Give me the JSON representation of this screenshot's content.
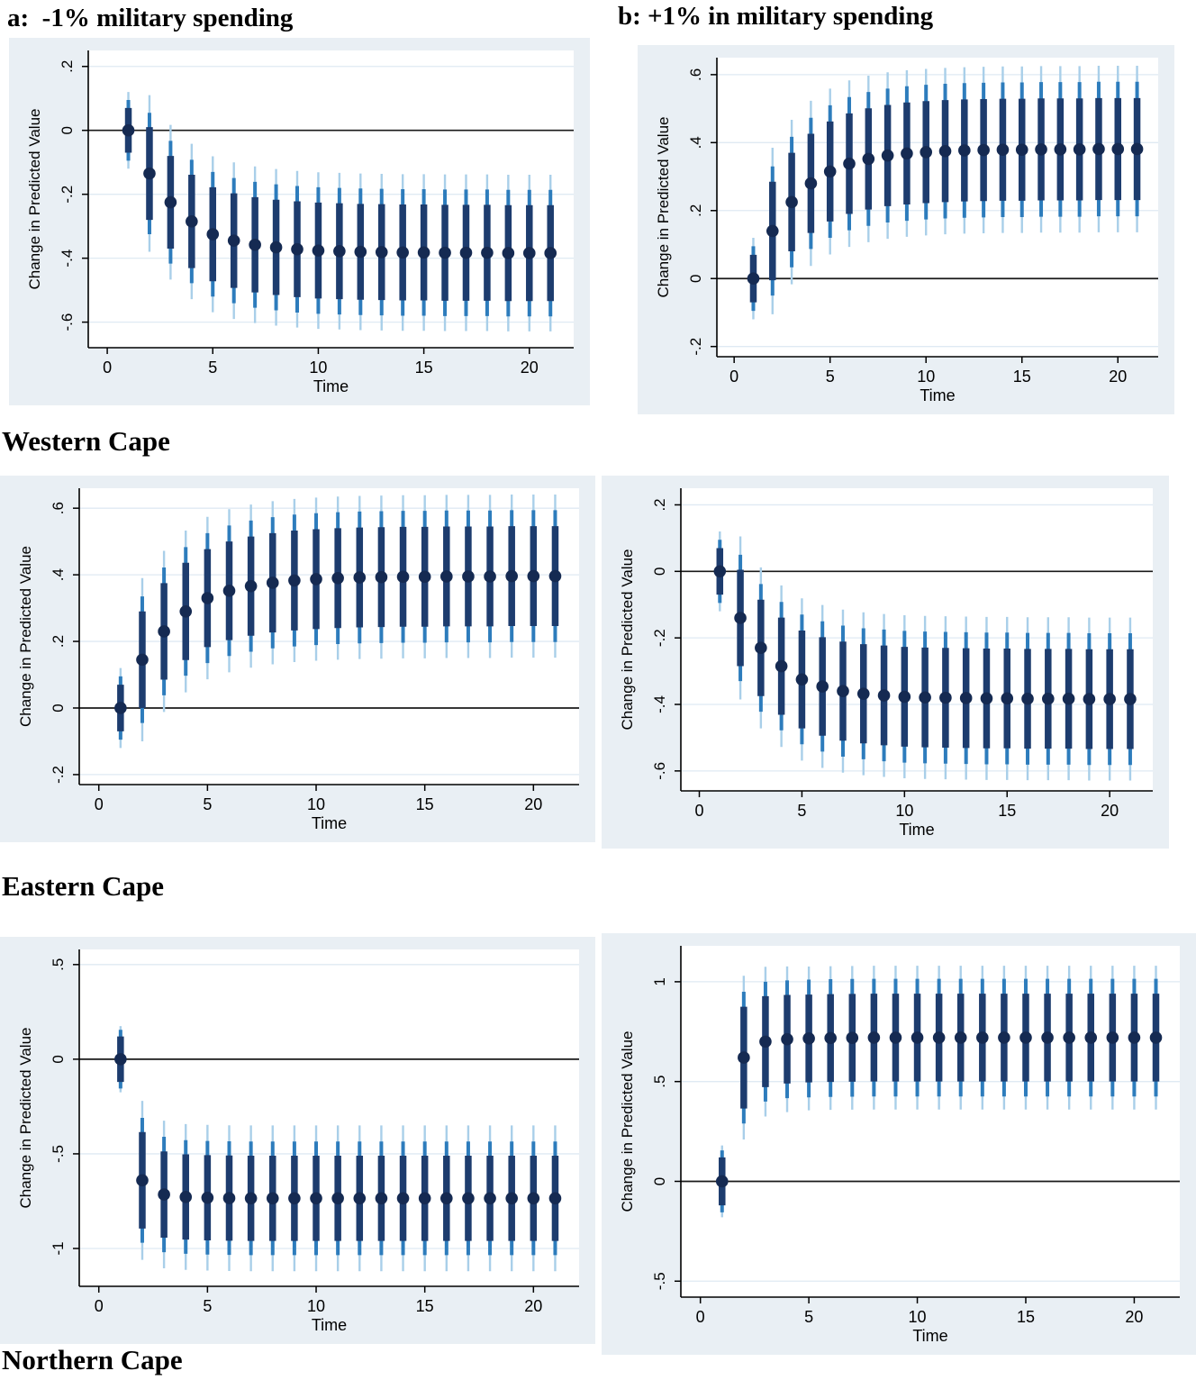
{
  "colors": {
    "panel_bg": "#e9eff4",
    "plot_bg": "#ffffff",
    "grid": "#dfeaf3",
    "inner_ci": "#1d3c6e",
    "mid_ci": "#2d7cbc",
    "outer_ci": "#a9cfe9",
    "marker": "#152a52",
    "zero_line": "#1a1a1a",
    "axis": "#000000"
  },
  "column_titles": [
    {
      "label": "a:  -1% military spending"
    },
    {
      "label": "b: +1% in military spending"
    }
  ],
  "row_labels": [
    "Western Cape",
    "Eastern Cape",
    "Northern Cape"
  ],
  "x_values": [
    1,
    2,
    3,
    4,
    5,
    6,
    7,
    8,
    9,
    10,
    11,
    12,
    13,
    14,
    15,
    16,
    17,
    18,
    19,
    20,
    21
  ],
  "chart_data": [
    {
      "id": "wc-a",
      "type": "scatter",
      "row_label": "Western Cape",
      "column": "a:  -1% military spending",
      "xlabel": "Time",
      "ylabel": "Change in Predicted Value",
      "xticks": [
        0,
        5,
        10,
        15,
        20
      ],
      "xlim": [
        -0.9,
        22.1
      ],
      "ytick_values": [
        0.2,
        0,
        -0.2,
        -0.4,
        -0.6
      ],
      "ytick_labels": [
        ".2",
        "0",
        "-.2",
        "-.4",
        "-.6"
      ],
      "ylim": [
        -0.68,
        0.25
      ],
      "y": [
        0,
        -0.135,
        -0.225,
        -0.285,
        -0.325,
        -0.345,
        -0.358,
        -0.366,
        -0.372,
        -0.376,
        -0.378,
        -0.38,
        -0.381,
        -0.382,
        -0.382,
        -0.383,
        -0.383,
        -0.383,
        -0.384,
        -0.384,
        -0.384
      ],
      "ci_inner_half": [
        0.07,
        0.145,
        0.145,
        0.146,
        0.147,
        0.148,
        0.149,
        0.149,
        0.15,
        0.15,
        0.15,
        0.15,
        0.15,
        0.15,
        0.15,
        0.15,
        0.15,
        0.15,
        0.15,
        0.15,
        0.15
      ],
      "ci_mid_half": [
        0.095,
        0.19,
        0.192,
        0.193,
        0.195,
        0.196,
        0.197,
        0.197,
        0.198,
        0.198,
        0.198,
        0.198,
        0.198,
        0.198,
        0.198,
        0.198,
        0.198,
        0.198,
        0.198,
        0.198,
        0.198
      ],
      "ci_outer_half": [
        0.12,
        0.245,
        0.242,
        0.243,
        0.244,
        0.245,
        0.245,
        0.245,
        0.245,
        0.245,
        0.245,
        0.245,
        0.245,
        0.245,
        0.245,
        0.245,
        0.245,
        0.245,
        0.245,
        0.245,
        0.245
      ]
    },
    {
      "id": "wc-b",
      "type": "scatter",
      "row_label": "Western Cape",
      "column": "b: +1% in military spending",
      "xlabel": "Time",
      "ylabel": "Change in Predicted Value",
      "xticks": [
        0,
        5,
        10,
        15,
        20
      ],
      "xlim": [
        -0.9,
        22.1
      ],
      "ytick_values": [
        0.6,
        0.4,
        0.2,
        0,
        -0.2
      ],
      "ytick_labels": [
        ".6",
        ".4",
        ".2",
        "0",
        "-.2"
      ],
      "ylim": [
        -0.23,
        0.65
      ],
      "y": [
        0,
        0.14,
        0.225,
        0.28,
        0.315,
        0.338,
        0.352,
        0.362,
        0.368,
        0.372,
        0.375,
        0.377,
        0.378,
        0.379,
        0.379,
        0.38,
        0.38,
        0.38,
        0.381,
        0.381,
        0.381
      ],
      "ci_inner_half": [
        0.07,
        0.145,
        0.145,
        0.146,
        0.147,
        0.148,
        0.149,
        0.149,
        0.15,
        0.15,
        0.15,
        0.15,
        0.15,
        0.15,
        0.15,
        0.15,
        0.15,
        0.15,
        0.15,
        0.15,
        0.15
      ],
      "ci_mid_half": [
        0.095,
        0.19,
        0.192,
        0.193,
        0.195,
        0.196,
        0.197,
        0.197,
        0.198,
        0.198,
        0.198,
        0.198,
        0.198,
        0.198,
        0.198,
        0.198,
        0.198,
        0.198,
        0.198,
        0.198,
        0.198
      ],
      "ci_outer_half": [
        0.12,
        0.245,
        0.242,
        0.243,
        0.244,
        0.245,
        0.245,
        0.245,
        0.245,
        0.245,
        0.245,
        0.245,
        0.245,
        0.245,
        0.245,
        0.245,
        0.245,
        0.245,
        0.245,
        0.245,
        0.245
      ]
    },
    {
      "id": "ec-a",
      "type": "scatter",
      "row_label": "Eastern Cape",
      "column": "a:  -1% military spending",
      "xlabel": "Time",
      "ylabel": "Change in Predicted Value",
      "xticks": [
        0,
        5,
        10,
        15,
        20
      ],
      "xlim": [
        -0.9,
        22.1
      ],
      "ytick_values": [
        0.6,
        0.4,
        0.2,
        0,
        -0.2
      ],
      "ytick_labels": [
        ".6",
        ".4",
        ".2",
        "0",
        "-.2"
      ],
      "ylim": [
        -0.23,
        0.66
      ],
      "y": [
        0,
        0.145,
        0.23,
        0.29,
        0.33,
        0.352,
        0.366,
        0.376,
        0.383,
        0.387,
        0.39,
        0.392,
        0.393,
        0.394,
        0.394,
        0.395,
        0.395,
        0.395,
        0.396,
        0.396,
        0.396
      ],
      "ci_inner_half": [
        0.07,
        0.145,
        0.145,
        0.146,
        0.147,
        0.148,
        0.149,
        0.149,
        0.15,
        0.15,
        0.15,
        0.15,
        0.15,
        0.15,
        0.15,
        0.15,
        0.15,
        0.15,
        0.15,
        0.15,
        0.15
      ],
      "ci_mid_half": [
        0.095,
        0.19,
        0.192,
        0.193,
        0.195,
        0.196,
        0.197,
        0.197,
        0.198,
        0.198,
        0.198,
        0.198,
        0.198,
        0.198,
        0.198,
        0.198,
        0.198,
        0.198,
        0.198,
        0.198,
        0.198
      ],
      "ci_outer_half": [
        0.12,
        0.245,
        0.242,
        0.243,
        0.244,
        0.245,
        0.245,
        0.245,
        0.245,
        0.245,
        0.245,
        0.245,
        0.245,
        0.245,
        0.245,
        0.245,
        0.245,
        0.245,
        0.245,
        0.245,
        0.245
      ]
    },
    {
      "id": "ec-b",
      "type": "scatter",
      "row_label": "Eastern Cape",
      "column": "b: +1% in military spending",
      "xlabel": "Time",
      "ylabel": "Change in Predicted Value",
      "xticks": [
        0,
        5,
        10,
        15,
        20
      ],
      "xlim": [
        -0.9,
        22.1
      ],
      "ytick_values": [
        0.2,
        0,
        -0.2,
        -0.4,
        -0.6
      ],
      "ytick_labels": [
        ".2",
        "0",
        "-.2",
        "-.4",
        "-.6"
      ],
      "ylim": [
        -0.66,
        0.25
      ],
      "y": [
        0,
        -0.14,
        -0.23,
        -0.285,
        -0.325,
        -0.346,
        -0.36,
        -0.368,
        -0.373,
        -0.377,
        -0.379,
        -0.38,
        -0.381,
        -0.382,
        -0.382,
        -0.383,
        -0.383,
        -0.383,
        -0.384,
        -0.384,
        -0.384
      ],
      "ci_inner_half": [
        0.07,
        0.145,
        0.145,
        0.146,
        0.147,
        0.148,
        0.149,
        0.149,
        0.15,
        0.15,
        0.15,
        0.15,
        0.15,
        0.15,
        0.15,
        0.15,
        0.15,
        0.15,
        0.15,
        0.15,
        0.15
      ],
      "ci_mid_half": [
        0.095,
        0.19,
        0.192,
        0.193,
        0.195,
        0.196,
        0.197,
        0.197,
        0.198,
        0.198,
        0.198,
        0.198,
        0.198,
        0.198,
        0.198,
        0.198,
        0.198,
        0.198,
        0.198,
        0.198,
        0.198
      ],
      "ci_outer_half": [
        0.12,
        0.245,
        0.242,
        0.243,
        0.244,
        0.245,
        0.245,
        0.245,
        0.245,
        0.245,
        0.245,
        0.245,
        0.245,
        0.245,
        0.245,
        0.245,
        0.245,
        0.245,
        0.245,
        0.245,
        0.245
      ]
    },
    {
      "id": "nc-a",
      "type": "scatter",
      "row_label": "Northern Cape",
      "column": "a:  -1% military spending",
      "xlabel": "Time",
      "ylabel": "Change in Predicted Value",
      "xticks": [
        0,
        5,
        10,
        15,
        20
      ],
      "xlim": [
        -0.9,
        22.1
      ],
      "ytick_values": [
        0.5,
        0,
        -0.5,
        -1
      ],
      "ytick_labels": [
        ".5",
        "0",
        "-.5",
        "-1"
      ],
      "ylim": [
        -1.2,
        0.58
      ],
      "y": [
        0,
        -0.64,
        -0.715,
        -0.728,
        -0.732,
        -0.734,
        -0.735,
        -0.735,
        -0.735,
        -0.735,
        -0.735,
        -0.735,
        -0.735,
        -0.735,
        -0.735,
        -0.735,
        -0.735,
        -0.735,
        -0.735,
        -0.735,
        -0.735
      ],
      "ci_inner_half": [
        0.12,
        0.255,
        0.228,
        0.225,
        0.225,
        0.225,
        0.225,
        0.225,
        0.225,
        0.225,
        0.225,
        0.225,
        0.225,
        0.225,
        0.225,
        0.225,
        0.225,
        0.225,
        0.225,
        0.225,
        0.225
      ],
      "ci_mid_half": [
        0.155,
        0.33,
        0.305,
        0.3,
        0.3,
        0.3,
        0.3,
        0.3,
        0.3,
        0.3,
        0.3,
        0.3,
        0.3,
        0.3,
        0.3,
        0.3,
        0.3,
        0.3,
        0.3,
        0.3,
        0.3
      ],
      "ci_outer_half": [
        0.175,
        0.42,
        0.39,
        0.385,
        0.385,
        0.385,
        0.385,
        0.385,
        0.385,
        0.385,
        0.385,
        0.385,
        0.385,
        0.385,
        0.385,
        0.385,
        0.385,
        0.385,
        0.385,
        0.385,
        0.385
      ]
    },
    {
      "id": "nc-b",
      "type": "scatter",
      "row_label": "Northern Cape",
      "column": "b: +1% in military spending",
      "xlabel": "Time",
      "ylabel": "Change in Predicted Value",
      "xticks": [
        0,
        5,
        10,
        15,
        20
      ],
      "xlim": [
        -0.9,
        22.1
      ],
      "ytick_values": [
        1,
        0.5,
        0,
        -0.5
      ],
      "ytick_labels": [
        "1",
        ".5",
        "0",
        "-.5"
      ],
      "ylim": [
        -0.58,
        1.18
      ],
      "y": [
        0,
        0.62,
        0.7,
        0.712,
        0.716,
        0.718,
        0.719,
        0.72,
        0.72,
        0.72,
        0.72,
        0.72,
        0.72,
        0.72,
        0.72,
        0.72,
        0.72,
        0.72,
        0.72,
        0.72,
        0.72
      ],
      "ci_inner_half": [
        0.12,
        0.255,
        0.228,
        0.222,
        0.22,
        0.22,
        0.22,
        0.22,
        0.22,
        0.22,
        0.22,
        0.22,
        0.22,
        0.22,
        0.22,
        0.22,
        0.22,
        0.22,
        0.22,
        0.22,
        0.22
      ],
      "ci_mid_half": [
        0.155,
        0.33,
        0.3,
        0.295,
        0.295,
        0.295,
        0.295,
        0.295,
        0.295,
        0.295,
        0.295,
        0.295,
        0.295,
        0.295,
        0.295,
        0.295,
        0.295,
        0.295,
        0.295,
        0.295,
        0.295
      ],
      "ci_outer_half": [
        0.18,
        0.41,
        0.375,
        0.365,
        0.36,
        0.36,
        0.36,
        0.36,
        0.36,
        0.36,
        0.36,
        0.36,
        0.36,
        0.36,
        0.36,
        0.36,
        0.36,
        0.36,
        0.36,
        0.36,
        0.36
      ]
    }
  ]
}
